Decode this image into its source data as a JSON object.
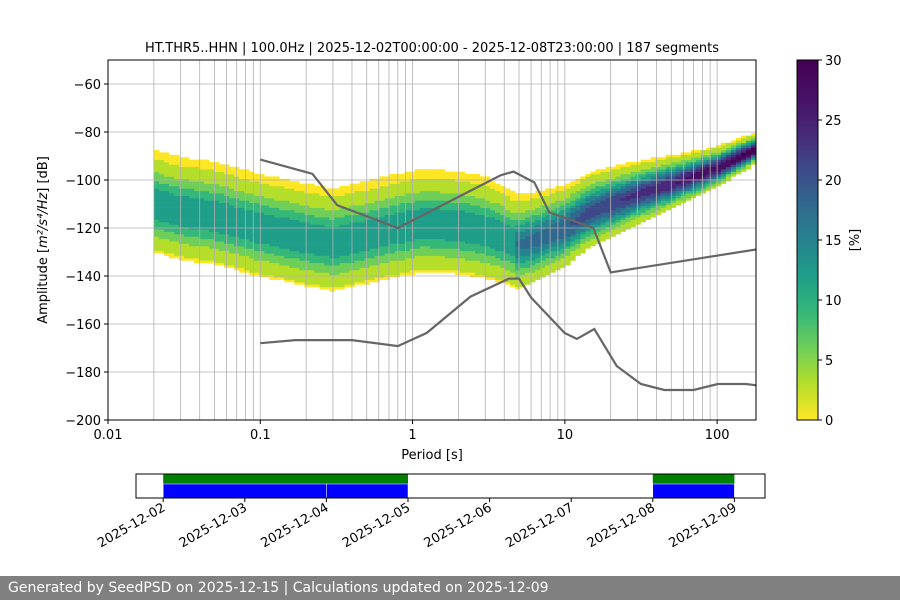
{
  "chart_data": [
    {
      "type": "heatmap",
      "title": "HT.THR5..HHN | 100.0Hz | 2025-12-02T00:00:00 - 2025-12-08T23:00:00 | 187 segments",
      "xlabel": "Period [s]",
      "ylabel_prefix": "Amplitude [",
      "ylabel_math": "m²/s⁴/Hz",
      "ylabel_suffix": "] [dB]",
      "x_scale": "log",
      "xlim": [
        0.01,
        180
      ],
      "ylim": [
        -200,
        -50
      ],
      "x_ticks": [
        {
          "value": 0.01,
          "label": "0.01"
        },
        {
          "value": 0.1,
          "label": "0.1"
        },
        {
          "value": 1,
          "label": "1"
        },
        {
          "value": 10,
          "label": "10"
        },
        {
          "value": 100,
          "label": "100"
        }
      ],
      "y_ticks": [
        {
          "value": -60,
          "label": "−60"
        },
        {
          "value": -80,
          "label": "−80"
        },
        {
          "value": -100,
          "label": "−100"
        },
        {
          "value": -120,
          "label": "−120"
        },
        {
          "value": -140,
          "label": "−140"
        },
        {
          "value": -160,
          "label": "−160"
        },
        {
          "value": -180,
          "label": "−180"
        },
        {
          "value": -200,
          "label": "−200"
        }
      ],
      "grid": true,
      "colormap": "viridis_r",
      "colorbar": {
        "label": "[%]",
        "range": [
          0,
          30
        ],
        "ticks": [
          {
            "value": 0,
            "label": "0"
          },
          {
            "value": 5,
            "label": "5"
          },
          {
            "value": 10,
            "label": "10"
          },
          {
            "value": 15,
            "label": "15"
          },
          {
            "value": 20,
            "label": "20"
          },
          {
            "value": 25,
            "label": "25"
          },
          {
            "value": 30,
            "label": "30"
          }
        ]
      },
      "mode_curve": {
        "period": [
          0.02,
          0.03,
          0.05,
          0.1,
          0.2,
          0.3,
          0.5,
          0.8,
          1.2,
          2,
          3,
          4,
          5,
          7,
          10,
          15,
          30,
          60,
          100,
          180
        ],
        "db": [
          -110,
          -113,
          -115,
          -120,
          -124,
          -126,
          -123,
          -120,
          -118,
          -119,
          -121,
          -124,
          -127,
          -124,
          -120,
          -113,
          -106,
          -100,
          -95,
          -87
        ]
      },
      "reference_curves": [
        {
          "name": "NHNM",
          "period": [
            0.1,
            0.22,
            0.32,
            0.8,
            3.8,
            4.6,
            6.3,
            7.9,
            15.4,
            20,
            354.8
          ],
          "db": [
            -91.5,
            -97.4,
            -110.5,
            -120,
            -98,
            -96.5,
            -101,
            -113.5,
            -120,
            -138.5,
            -126
          ]
        },
        {
          "name": "NLNM",
          "period": [
            0.1,
            0.17,
            0.4,
            0.8,
            1.24,
            2.4,
            4.3,
            5,
            6,
            10,
            12,
            15.6,
            21.9,
            31.6,
            45,
            70,
            101,
            154,
            328
          ],
          "db": [
            -168,
            -166.7,
            -166.7,
            -169.2,
            -163.7,
            -148.6,
            -141.1,
            -141.1,
            -149,
            -163.8,
            -166.2,
            -162.1,
            -177.5,
            -185,
            -187.5,
            -187.5,
            -185,
            -185,
            -187.5
          ]
        }
      ]
    },
    {
      "type": "timeline",
      "x_ticks": [
        "2025-12-02",
        "2025-12-03",
        "2025-12-04",
        "2025-12-05",
        "2025-12-06",
        "2025-12-07",
        "2025-12-08",
        "2025-12-09"
      ],
      "xlim": [
        "2025-12-01T16:00",
        "2025-12-09T09:00"
      ],
      "data_available": [
        [
          "2025-12-02T00:00",
          "2025-12-05T00:00"
        ],
        [
          "2025-12-08T00:00",
          "2025-12-09T00:00"
        ]
      ],
      "psd_computed": [
        [
          "2025-12-02T00:00",
          "2025-12-04T00:00"
        ],
        [
          "2025-12-04T00:00",
          "2025-12-05T00:00"
        ],
        [
          "2025-12-08T00:00",
          "2025-12-09T00:00"
        ]
      ],
      "colors": {
        "data_available": "#008000",
        "psd_computed": "#0000ff"
      }
    }
  ],
  "footer": {
    "text": "Generated by SeedPSD on 2025-12-15 | Calculations updated on 2025-12-09"
  }
}
